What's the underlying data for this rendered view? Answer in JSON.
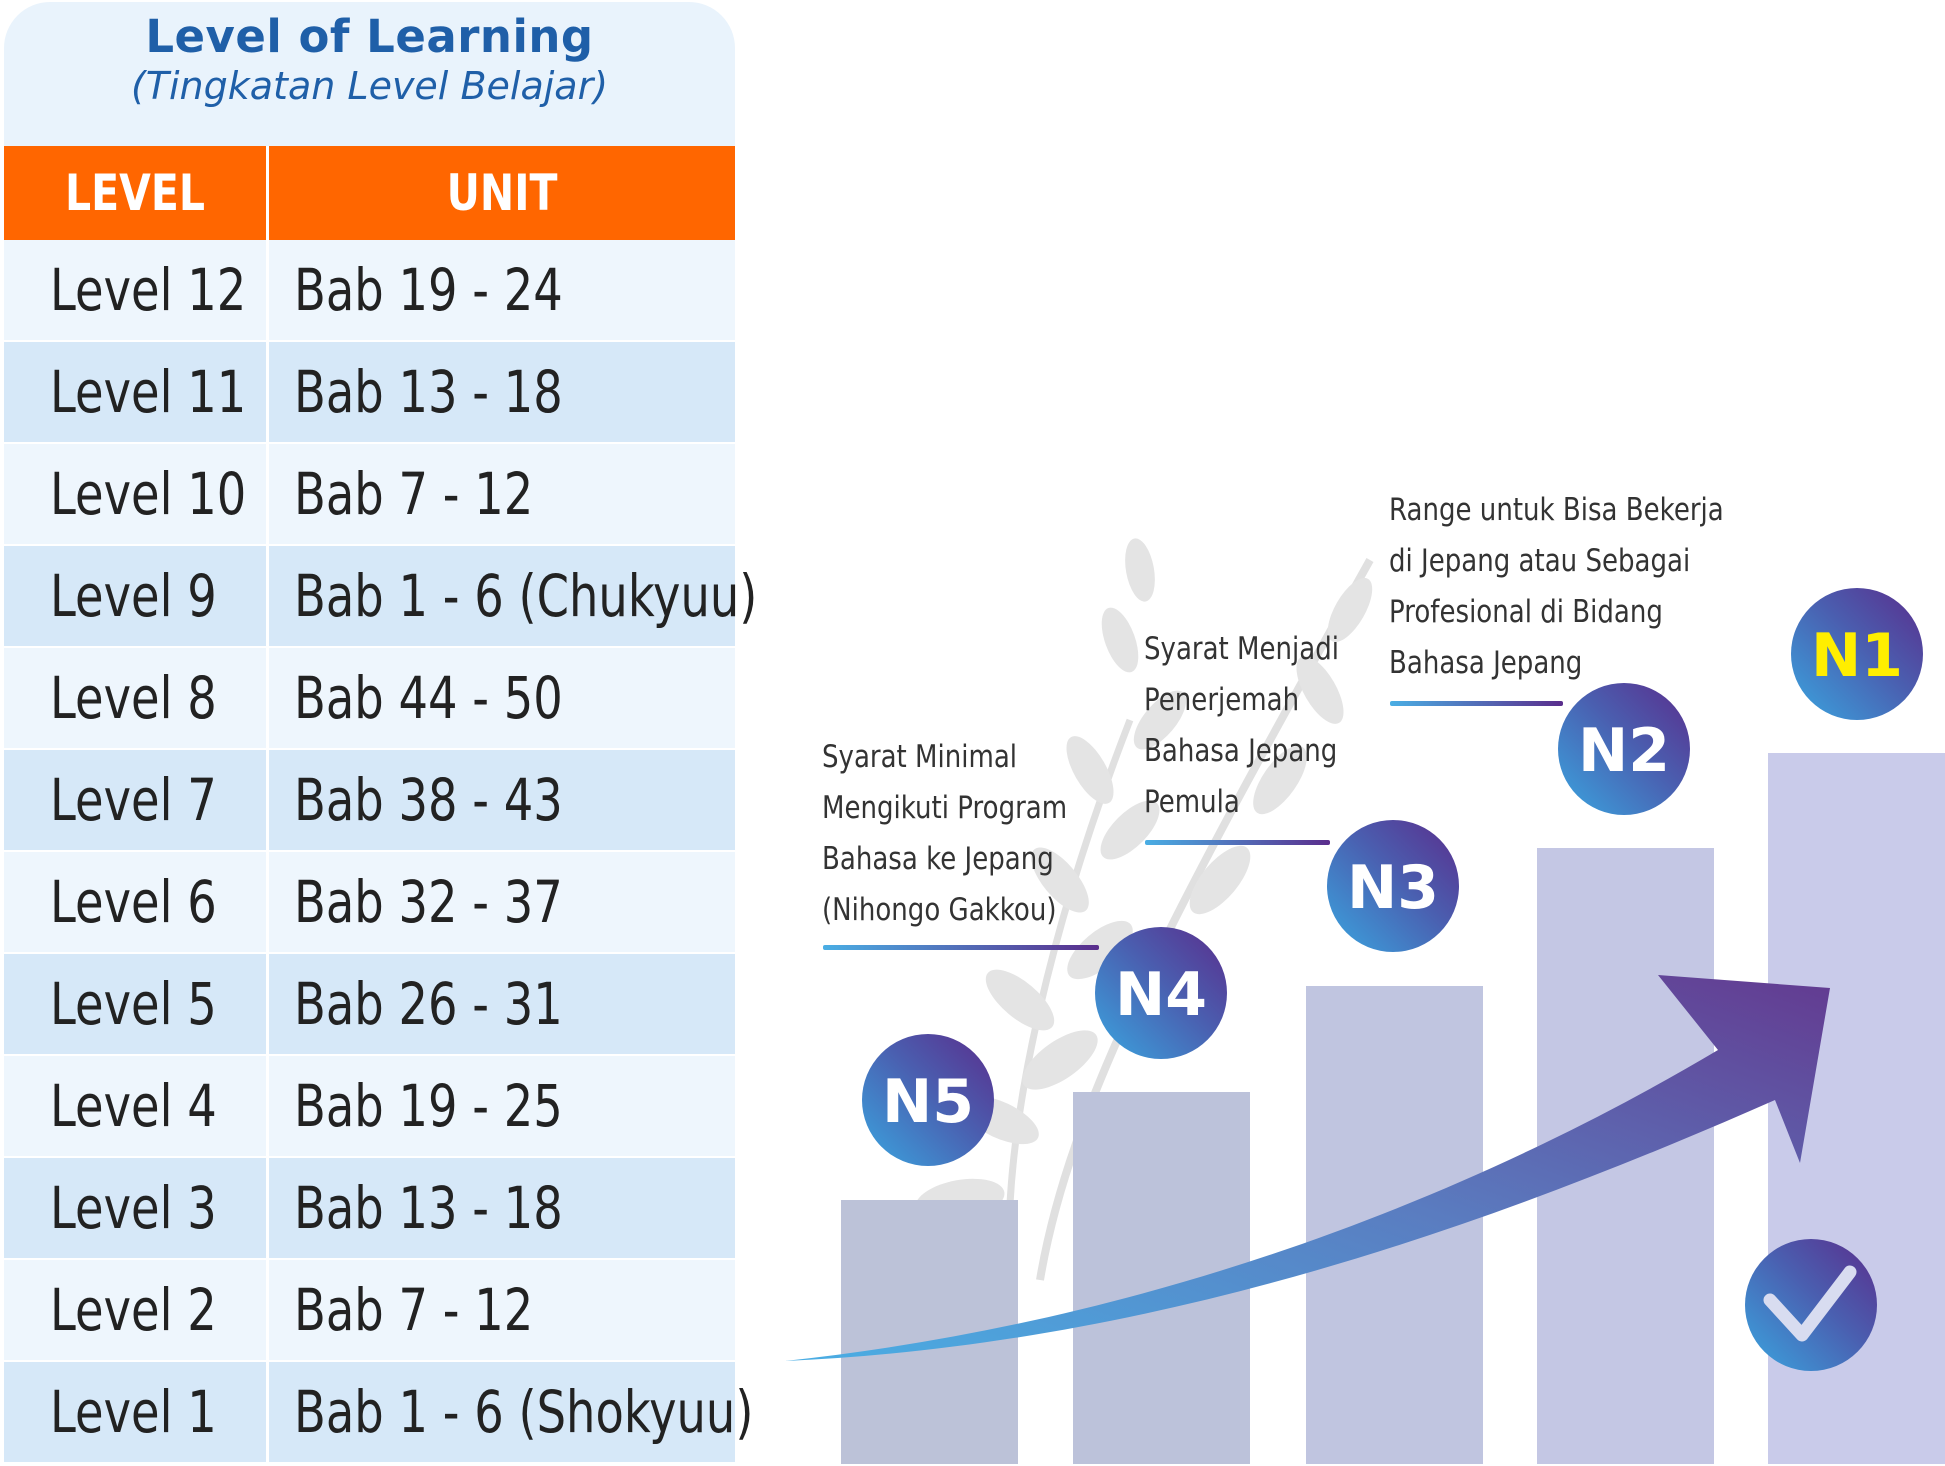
{
  "card": {
    "title": "Level of Learning",
    "subtitle": "(Tingkatan Level Belajar)"
  },
  "table": {
    "headers": {
      "level": "LEVEL",
      "unit": "UNIT"
    },
    "rows": [
      {
        "level": "Level 12",
        "unit": "Bab 19 - 24"
      },
      {
        "level": "Level 11",
        "unit": "Bab 13 - 18"
      },
      {
        "level": "Level 10",
        "unit": "Bab 7 - 12"
      },
      {
        "level": "Level 9",
        "unit": "Bab 1 - 6 (Chukyuu)"
      },
      {
        "level": "Level 8",
        "unit": "Bab 44 - 50"
      },
      {
        "level": "Level 7",
        "unit": "Bab 38 - 43"
      },
      {
        "level": "Level 6",
        "unit": "Bab 32 - 37"
      },
      {
        "level": "Level 5",
        "unit": "Bab 26 - 31"
      },
      {
        "level": "Level 4",
        "unit": "Bab 19 - 25"
      },
      {
        "level": "Level 3",
        "unit": "Bab 13 - 18"
      },
      {
        "level": "Level 2",
        "unit": "Bab 7 - 12"
      },
      {
        "level": "Level 1",
        "unit": "Bab 1 - 6 (Shokyuu)"
      }
    ]
  },
  "levels_chart": {
    "steps": [
      {
        "label": "N5",
        "rank": 1
      },
      {
        "label": "N4",
        "rank": 2
      },
      {
        "label": "N3",
        "rank": 3
      },
      {
        "label": "N2",
        "rank": 4
      },
      {
        "label": "N1",
        "rank": 5
      }
    ],
    "notes": {
      "n4": [
        "Syarat Minimal",
        "Mengikuti Program",
        "Bahasa ke Jepang",
        "(Nihongo Gakkou)"
      ],
      "n3": [
        "Syarat Menjadi",
        "Penerjemah",
        "Bahasa Jepang",
        "Pemula"
      ],
      "n2": [
        "Range untuk Bisa Bekerja",
        "di Jepang atau Sebagai",
        "Profesional di Bidang",
        "Bahasa Jepang"
      ]
    },
    "check_icon": "check-icon",
    "arrow_icon": "growth-arrow-icon"
  },
  "colors": {
    "header_orange": "#ff6600",
    "title_blue": "#1f5fa8",
    "row_light": "#eef6fd",
    "row_dark": "#d6e8f8",
    "badge_start": "#3aa6e0",
    "badge_end": "#5a2d8c",
    "n1_text": "#ffee00"
  }
}
